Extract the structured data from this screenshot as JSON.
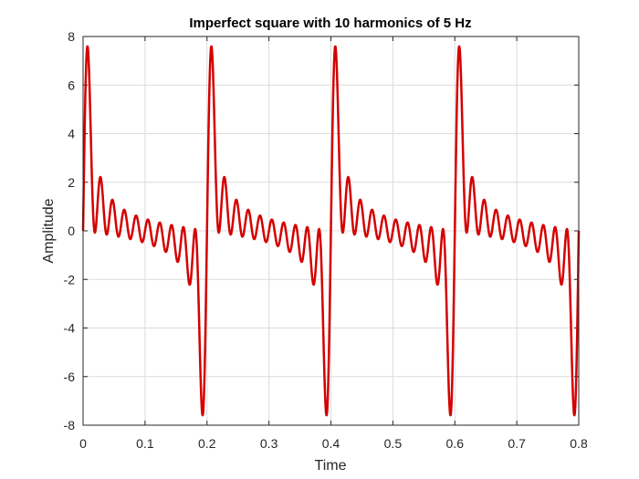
{
  "chart_data": {
    "type": "line",
    "title": "Imperfect square with 10 harmonics of 5 Hz",
    "xlabel": "Time",
    "ylabel": "Amplitude",
    "xlim": [
      0,
      0.8
    ],
    "ylim": [
      -8,
      8
    ],
    "xticks": [
      0,
      0.1,
      0.2,
      0.3,
      0.4,
      0.5,
      0.6,
      0.7,
      0.8
    ],
    "xtick_labels": [
      "0",
      "0.1",
      "0.2",
      "0.3",
      "0.4",
      "0.5",
      "0.6",
      "0.7",
      "0.8"
    ],
    "yticks": [
      8,
      6,
      4,
      2,
      0,
      -2,
      -4,
      -6,
      -8
    ],
    "ytick_labels": [
      "8",
      "6",
      "4",
      "2",
      "0",
      "-2",
      "-4",
      "-6",
      "-8"
    ],
    "grid": true,
    "series": [
      {
        "color": "#d40000",
        "function": "sum of sin(2*pi*f*t), f = 5, 10, ..., 50 Hz",
        "frequency_hz": 5,
        "harmonics": 10
      }
    ]
  }
}
